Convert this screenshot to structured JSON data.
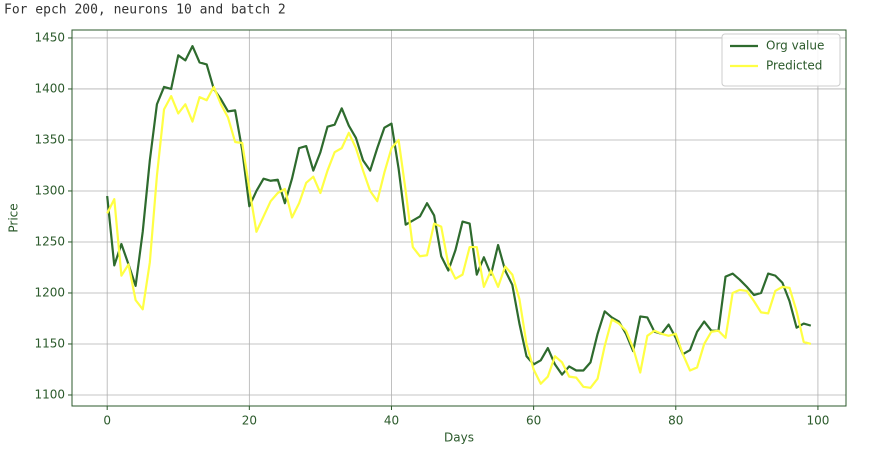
{
  "chart_data": {
    "type": "line",
    "title": "For epch 200, neurons 10 and batch 2",
    "x_label": "Days",
    "y_label": "Price",
    "x": [
      0,
      1,
      2,
      3,
      4,
      5,
      6,
      7,
      8,
      9,
      10,
      11,
      12,
      13,
      14,
      15,
      16,
      17,
      18,
      19,
      20,
      21,
      22,
      23,
      24,
      25,
      26,
      27,
      28,
      29,
      30,
      31,
      32,
      33,
      34,
      35,
      36,
      37,
      38,
      39,
      40,
      41,
      42,
      43,
      44,
      45,
      46,
      47,
      48,
      49,
      50,
      51,
      52,
      53,
      54,
      55,
      56,
      57,
      58,
      59,
      60,
      61,
      62,
      63,
      64,
      65,
      66,
      67,
      68,
      69,
      70,
      71,
      72,
      73,
      74,
      75,
      76,
      77,
      78,
      79,
      80,
      81,
      82,
      83,
      84,
      85,
      86,
      87,
      88,
      89,
      90,
      91,
      92,
      93,
      94,
      95,
      96,
      97,
      98,
      99
    ],
    "series": [
      {
        "name": "Org value",
        "color": "#2e6b2e",
        "values": [
          1295,
          1227,
          1248,
          1228,
          1207,
          1260,
          1330,
          1385,
          1402,
          1400,
          1433,
          1428,
          1442,
          1426,
          1424,
          1400,
          1390,
          1378,
          1379,
          1340,
          1285,
          1300,
          1312,
          1310,
          1311,
          1288,
          1312,
          1342,
          1344,
          1320,
          1338,
          1363,
          1365,
          1381,
          1364,
          1352,
          1330,
          1320,
          1342,
          1362,
          1366,
          1322,
          1267,
          1271,
          1275,
          1288,
          1276,
          1236,
          1222,
          1242,
          1270,
          1268,
          1218,
          1235,
          1218,
          1247,
          1222,
          1208,
          1170,
          1138,
          1130,
          1134,
          1146,
          1130,
          1120,
          1128,
          1124,
          1124,
          1132,
          1160,
          1182,
          1176,
          1172,
          1160,
          1143,
          1177,
          1176,
          1162,
          1160,
          1169,
          1156,
          1140,
          1144,
          1162,
          1172,
          1163,
          1163,
          1216,
          1219,
          1213,
          1206,
          1198,
          1200,
          1219,
          1217,
          1210,
          1192,
          1166,
          1170,
          1168
        ]
      },
      {
        "name": "Predicted",
        "color": "#ffff44",
        "values": [
          1278,
          1292,
          1217,
          1228,
          1193,
          1184,
          1230,
          1315,
          1380,
          1393,
          1376,
          1385,
          1368,
          1392,
          1389,
          1402,
          1385,
          1372,
          1348,
          1347,
          1302,
          1260,
          1275,
          1290,
          1298,
          1302,
          1274,
          1288,
          1308,
          1314,
          1298,
          1320,
          1338,
          1342,
          1357,
          1342,
          1320,
          1300,
          1290,
          1318,
          1342,
          1350,
          1300,
          1245,
          1236,
          1237,
          1268,
          1265,
          1228,
          1214,
          1218,
          1245,
          1245,
          1206,
          1222,
          1206,
          1226,
          1218,
          1194,
          1150,
          1125,
          1111,
          1118,
          1138,
          1132,
          1118,
          1117,
          1108,
          1107,
          1116,
          1148,
          1174,
          1170,
          1163,
          1146,
          1122,
          1158,
          1163,
          1160,
          1158,
          1160,
          1140,
          1124,
          1127,
          1150,
          1162,
          1163,
          1156,
          1200,
          1203,
          1202,
          1192,
          1181,
          1180,
          1202,
          1206,
          1205,
          1182,
          1152,
          1150
        ]
      }
    ],
    "xlim": [
      -4.95,
      103.95
    ],
    "ylim": [
      1089.2,
      1457.8
    ],
    "xticks": [
      0,
      20,
      40,
      60,
      80,
      100
    ],
    "yticks": [
      1100,
      1150,
      1200,
      1250,
      1300,
      1350,
      1400,
      1450
    ],
    "grid": true,
    "legend": "upper right"
  }
}
